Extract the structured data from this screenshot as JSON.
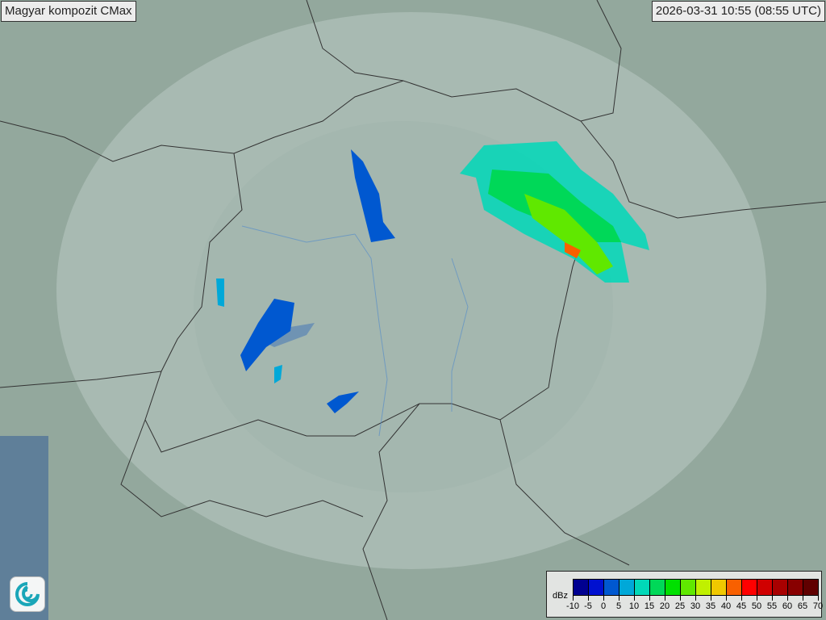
{
  "header": {
    "title": "Magyar kompozit  CMax",
    "timestamp": "2026-03-31 10:55 (08:55 UTC)"
  },
  "legend": {
    "unit": "dBz",
    "labels": [
      "-10",
      "-5",
      "0",
      "5",
      "10",
      "15",
      "20",
      "25",
      "30",
      "35",
      "40",
      "45",
      "50",
      "55",
      "60",
      "65",
      "70"
    ],
    "colors": [
      "#000090",
      "#0010d0",
      "#0058d0",
      "#00a8d8",
      "#00d8b8",
      "#00d858",
      "#00e000",
      "#60e800",
      "#c0f000",
      "#f0c800",
      "#f86000",
      "#ff0000",
      "#d00000",
      "#a80000",
      "#880000",
      "#600000"
    ]
  },
  "logo": {
    "icon": "met-service-swirl-logo"
  }
}
